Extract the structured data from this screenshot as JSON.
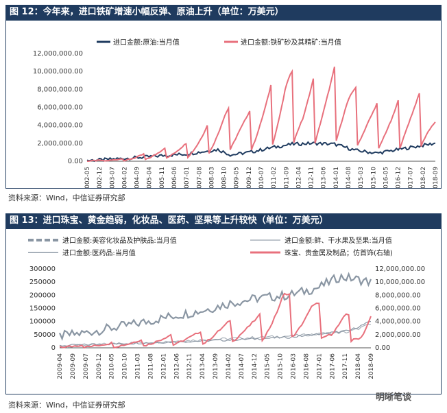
{
  "figures": [
    {
      "title": "图 12：今年来，进口铁矿增速小幅反弹、原油上升（单位：万美元）",
      "source": "资料来源：Wind，中信证券研究部"
    },
    {
      "title": "图 13：进口珠宝、黄金趋弱，化妆品、医药、坚果等上升较快（单位：万美元）",
      "source": "资料来源：Wind，中信证券研究部"
    }
  ],
  "watermark": "明晰笔谈",
  "colors": {
    "navy": "#1f3b5f",
    "pink": "#e8707c",
    "gray": "#8a96a3",
    "gray_light": "#a9b2bb",
    "pink_light": "#f0a1a8"
  },
  "chart_data": [
    {
      "type": "line",
      "legend": [
        {
          "name": "进口金额:原油:当月值",
          "color": "#1f3b5f"
        },
        {
          "name": "进口金额:铁矿砂及其精矿:当月值",
          "color": "#e8707c"
        }
      ],
      "x_ticks": [
        "2002-05",
        "2002-12",
        "2003-07",
        "2004-02",
        "2004-09",
        "2005-04",
        "2005-11",
        "2006-06",
        "2007-01",
        "2007-08",
        "2008-03",
        "2008-10",
        "2009-05",
        "2009-12",
        "2010-07",
        "2011-02",
        "2011-09",
        "2012-04",
        "2012-11",
        "2013-06",
        "2014-01",
        "2014-08",
        "2015-03",
        "2015-10",
        "2016-05",
        "2016-12",
        "2017-07",
        "2018-02",
        "2018-09"
      ],
      "y_ticks": [
        "12,000,000.00",
        "10,000,000.00",
        "8,000,000.00",
        "6,000,000.00",
        "4,000,000.00",
        "2,000,000.00",
        "0.00"
      ],
      "ylim": [
        0,
        12000000
      ],
      "x_range": [
        2002.33,
        2018.75
      ],
      "series": [
        {
          "name": "进口金额:原油:当月值",
          "color": "#1f3b5f",
          "points": [
            [
              2002.33,
              100000
            ],
            [
              2003.0,
              150000
            ],
            [
              2004.0,
              300000
            ],
            [
              2005.0,
              450000
            ],
            [
              2006.0,
              650000
            ],
            [
              2007.0,
              800000
            ],
            [
              2008.5,
              1300000
            ],
            [
              2009.1,
              700000
            ],
            [
              2010.0,
              1000000
            ],
            [
              2011.0,
              1500000
            ],
            [
              2012.0,
              1900000
            ],
            [
              2013.0,
              2000000
            ],
            [
              2014.0,
              1900000
            ],
            [
              2015.0,
              1200000
            ],
            [
              2016.0,
              900000
            ],
            [
              2017.0,
              1300000
            ],
            [
              2018.0,
              1700000
            ],
            [
              2018.75,
              2000000
            ]
          ]
        },
        {
          "name": "进口金额:铁矿砂及其精矿:当月值",
          "color": "#e8707c",
          "points": [
            [
              2002.33,
              50000
            ],
            [
              2003.0,
              100000
            ],
            [
              2004.0,
              300000
            ],
            [
              2005.0,
              800000
            ],
            [
              2006.0,
              1500000
            ],
            [
              2007.0,
              2000000
            ],
            [
              2008.0,
              4000000
            ],
            [
              2008.8,
              6000000
            ],
            [
              2010.0,
              5600000
            ],
            [
              2010.5,
              7200000
            ],
            [
              2011.0,
              8500000
            ],
            [
              2011.7,
              11200000
            ],
            [
              2012.5,
              8200000
            ],
            [
              2013.3,
              9800000
            ],
            [
              2014.0,
              10500000
            ],
            [
              2014.6,
              9900000
            ],
            [
              2015.3,
              7000000
            ],
            [
              2015.8,
              6500000
            ],
            [
              2016.7,
              6300000
            ],
            [
              2017.4,
              7400000
            ],
            [
              2018.1,
              7600000
            ],
            [
              2018.75,
              5500000
            ]
          ]
        }
      ]
    },
    {
      "type": "line",
      "legend": [
        {
          "name": "进口金额:美容化妆品及护肤品:当月值",
          "color": "#8a96a3",
          "style": "dashed"
        },
        {
          "name": "进口金额:鲜、干水果及坚果:当月值",
          "color": "#a9b2bb",
          "style": "thin"
        },
        {
          "name": "进口金额:医药品:当月值",
          "color": "#8a96a3",
          "style": "thin"
        },
        {
          "name": "珠宝、贵金属及制品；仿首饰(右轴)",
          "color": "#e8707c",
          "style": "thick"
        }
      ],
      "x_ticks": [
        "2009-04",
        "2009-09",
        "2009-07",
        "2009-12",
        "2010-05",
        "2010-10",
        "2011-03",
        "2011-08",
        "2012-01",
        "2012-06",
        "2012-11",
        "2013-04",
        "2013-09",
        "2014-02",
        "2014-07",
        "2014-12",
        "2015-05",
        "2015-10",
        "2016-03",
        "2016-08",
        "2017-01",
        "2017-06",
        "2017-11",
        "2018-04",
        "2018-09"
      ],
      "y_left_ticks": [
        "300000",
        "250000",
        "200000",
        "150000",
        "100000",
        "50000",
        "0"
      ],
      "y_right_ticks": [
        "12,000,000.00",
        "10,000,000.00",
        "8,000,000.00",
        "6,000,000.00",
        "4,000,000.00",
        "2,000,000.00",
        "0.00"
      ],
      "ylim_left": [
        0,
        300000
      ],
      "ylim_right": [
        0,
        12000000
      ],
      "x_range": [
        2008.25,
        2018.75
      ],
      "series": [
        {
          "name": "进口金额:美容化妆品及护肤品:当月值",
          "axis": "left",
          "color": "#8a96a3",
          "points": [
            [
              2008.25,
              45000
            ],
            [
              2009.0,
              55000
            ],
            [
              2010.0,
              75000
            ],
            [
              2011.0,
              95000
            ],
            [
              2012.0,
              120000
            ],
            [
              2013.0,
              140000
            ],
            [
              2014.0,
              170000
            ],
            [
              2015.0,
              190000
            ],
            [
              2016.0,
              200000
            ],
            [
              2017.0,
              230000
            ],
            [
              2017.7,
              270000
            ],
            [
              2018.3,
              260000
            ],
            [
              2018.75,
              250000
            ]
          ]
        },
        {
          "name": "进口金额:鲜、干水果及坚果:当月值",
          "axis": "left",
          "color": "#a9b2bb",
          "points": [
            [
              2008.25,
              5000
            ],
            [
              2010.0,
              15000
            ],
            [
              2012.0,
              25000
            ],
            [
              2014.0,
              35000
            ],
            [
              2016.0,
              45000
            ],
            [
              2018.0,
              60000
            ],
            [
              2018.75,
              90000
            ]
          ]
        },
        {
          "name": "进口金额:医药品:当月值",
          "axis": "left",
          "color": "#8a96a3",
          "points": [
            [
              2008.25,
              8000
            ],
            [
              2010.0,
              15000
            ],
            [
              2012.0,
              22000
            ],
            [
              2014.0,
              30000
            ],
            [
              2016.0,
              40000
            ],
            [
              2018.0,
              65000
            ],
            [
              2018.75,
              100000
            ]
          ]
        },
        {
          "name": "珠宝、贵金属及制品；仿首饰(右轴)",
          "axis": "right",
          "color": "#e8707c",
          "points": [
            [
              2008.25,
              200000
            ],
            [
              2010.5,
              900000
            ],
            [
              2011.2,
              1400000
            ],
            [
              2012.0,
              2000000
            ],
            [
              2013.0,
              2500000
            ],
            [
              2013.6,
              3800000
            ],
            [
              2014.3,
              4500000
            ],
            [
              2015.0,
              5000000
            ],
            [
              2015.8,
              9800000
            ],
            [
              2016.2,
              6500000
            ],
            [
              2016.8,
              8000000
            ],
            [
              2017.4,
              4000000
            ],
            [
              2017.9,
              5600000
            ],
            [
              2018.4,
              3000000
            ],
            [
              2018.75,
              6000000
            ]
          ]
        }
      ]
    }
  ]
}
